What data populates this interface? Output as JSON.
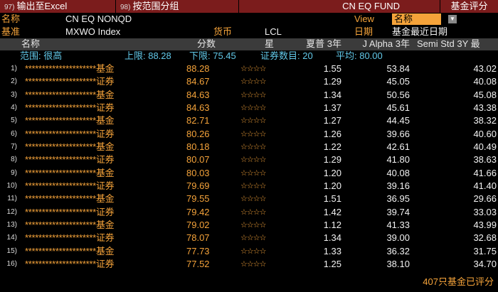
{
  "toolbar": {
    "buttons": [
      {
        "number": "97)",
        "label": "输出至Excel"
      },
      {
        "number": "98)",
        "label": "按范围分组"
      }
    ],
    "title": "CN EQ FUND",
    "right": "基金评分"
  },
  "info": {
    "name_label": "名称",
    "name": "CN EQ NONQD",
    "view_label": "View",
    "view": "名称",
    "benchmark_label": "基准",
    "benchmark": "MXWO Index",
    "currency_label": "货币",
    "currency": "LCL",
    "date_label": "日期",
    "date": "基金最近日期"
  },
  "table": {
    "columns": [
      "名称",
      "分数",
      "星",
      "夏普 3年",
      "J Alpha 3年",
      "Semi Std 3Y 最"
    ],
    "summary": [
      "范围: 很高",
      "上限: 88.28",
      "下限: 75.45",
      "证券数目: 20",
      "平均: 80.00"
    ],
    "rows": [
      [
        "1)",
        "*********************基金",
        "88.28",
        "☆☆☆☆",
        "1.55",
        "53.84",
        "43.02"
      ],
      [
        "2)",
        "*********************证券",
        "84.67",
        "☆☆☆☆",
        "1.29",
        "45.05",
        "40.08"
      ],
      [
        "3)",
        "*********************基金",
        "84.63",
        "☆☆☆☆",
        "1.34",
        "50.56",
        "45.08"
      ],
      [
        "4)",
        "*********************证券",
        "84.63",
        "☆☆☆☆",
        "1.37",
        "45.61",
        "43.38"
      ],
      [
        "5)",
        "*********************基金",
        "82.71",
        "☆☆☆☆",
        "1.27",
        "44.45",
        "38.32"
      ],
      [
        "6)",
        "*********************证券",
        "80.26",
        "☆☆☆☆",
        "1.26",
        "39.66",
        "40.60"
      ],
      [
        "7)",
        "*********************基金",
        "80.18",
        "☆☆☆☆",
        "1.22",
        "42.61",
        "40.49"
      ],
      [
        "8)",
        "*********************证券",
        "80.07",
        "☆☆☆☆",
        "1.29",
        "41.80",
        "38.63"
      ],
      [
        "9)",
        "*********************基金",
        "80.03",
        "☆☆☆☆",
        "1.20",
        "40.08",
        "41.66"
      ],
      [
        "10)",
        "*********************证券",
        "79.69",
        "☆☆☆☆",
        "1.20",
        "39.16",
        "41.40"
      ],
      [
        "11)",
        "*********************基金",
        "79.55",
        "☆☆☆☆",
        "1.51",
        "36.95",
        "29.66"
      ],
      [
        "12)",
        "*********************证券",
        "79.42",
        "☆☆☆☆",
        "1.42",
        "39.74",
        "33.03"
      ],
      [
        "13)",
        "*********************基金",
        "79.02",
        "☆☆☆☆",
        "1.12",
        "41.33",
        "43.99"
      ],
      [
        "14)",
        "*********************证券",
        "78.07",
        "☆☆☆☆",
        "1.34",
        "39.00",
        "32.68"
      ],
      [
        "15)",
        "*********************基金",
        "77.73",
        "☆☆☆☆",
        "1.33",
        "36.32",
        "31.75"
      ],
      [
        "16)",
        "*********************证券",
        "77.52",
        "☆☆☆☆",
        "1.25",
        "38.10",
        "34.70"
      ]
    ]
  },
  "footer": "407只基金已评分"
}
